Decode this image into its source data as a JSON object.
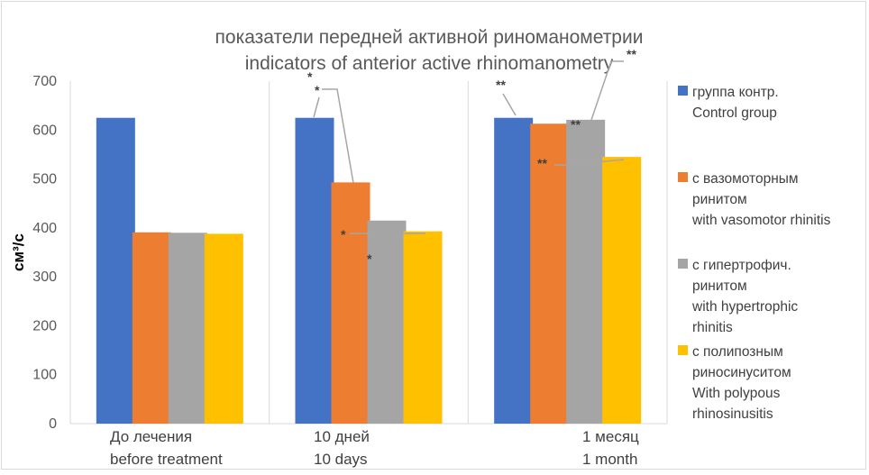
{
  "chart_data": {
    "type": "bar",
    "title": [
      "показатели передней активной риноманометрии",
      "indicators of anterior active rhinomanometry"
    ],
    "ylabel": "см³/с",
    "ylim": [
      0,
      700
    ],
    "yticks": [
      0,
      100,
      200,
      300,
      400,
      500,
      600,
      700
    ],
    "grid": {
      "vertical_between_categories": true,
      "horizontal": false
    },
    "legend_position": "right",
    "categories": [
      [
        "До лечения",
        "before treatment"
      ],
      [
        "10 дней",
        "10 days"
      ],
      [
        "1 месяц",
        "1 month"
      ]
    ],
    "series": [
      {
        "name": [
          "группа контр.",
          "Control group"
        ],
        "color": "#4472C4",
        "values": [
          625,
          625,
          625
        ]
      },
      {
        "name": [
          "с вазомоторным",
          "ринитом",
          "with vasomotor rhinitis"
        ],
        "color": "#ED7D31",
        "values": [
          391,
          493,
          613
        ]
      },
      {
        "name": [
          "с гипертрофич.",
          "ринитом",
          "with hypertrophic",
          "rhinitis"
        ],
        "color": "#A5A5A5",
        "values": [
          390,
          415,
          621
        ]
      },
      {
        "name": [
          "с полипозным",
          "риносинуситом",
          "With polypous",
          "rhinosinusitis"
        ],
        "color": "#FFC000",
        "values": [
          388,
          393,
          545
        ]
      }
    ],
    "annotations": [
      "*",
      "*",
      "*",
      "*",
      "**",
      "**",
      "**",
      "**"
    ]
  }
}
